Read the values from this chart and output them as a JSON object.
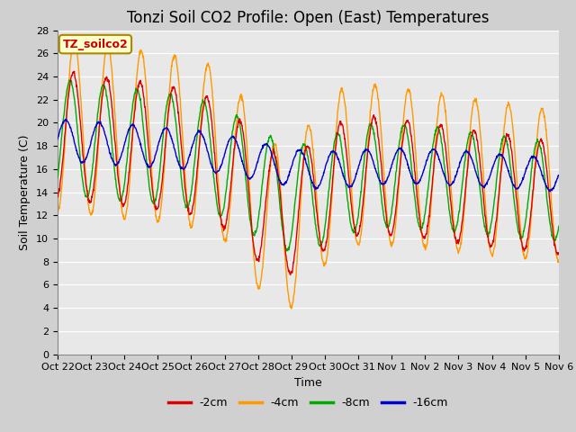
{
  "title": "Tonzi Soil CO2 Profile: Open (East) Temperatures",
  "xlabel": "Time",
  "ylabel": "Soil Temperature (C)",
  "ylim": [
    0,
    28
  ],
  "yticks": [
    0,
    2,
    4,
    6,
    8,
    10,
    12,
    14,
    16,
    18,
    20,
    22,
    24,
    26,
    28
  ],
  "x_tick_labels": [
    "Oct 22",
    "Oct 23",
    "Oct 24",
    "Oct 25",
    "Oct 26",
    "Oct 27",
    "Oct 28",
    "Oct 29",
    "Oct 30",
    "Oct 31",
    "Nov 1",
    "Nov 2",
    "Nov 3",
    "Nov 4",
    "Nov 5",
    "Nov 6"
  ],
  "legend_labels": [
    "-2cm",
    "-4cm",
    "-8cm",
    "-16cm"
  ],
  "line_colors": [
    "#dd0000",
    "#ff9900",
    "#00aa00",
    "#0000cc"
  ],
  "annotation_text": "TZ_soilco2",
  "annotation_color": "#cc0000",
  "annotation_bg": "#ffffcc",
  "annotation_border": "#aa8800",
  "fig_bg": "#d0d0d0",
  "plot_bg": "#e8e8e8",
  "grid_color": "#ffffff",
  "title_fontsize": 12,
  "axis_fontsize": 9,
  "tick_fontsize": 8,
  "legend_fontsize": 9,
  "n_days": 15,
  "n_points": 1440
}
